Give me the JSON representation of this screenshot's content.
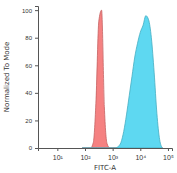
{
  "chart_data": {
    "type": "area",
    "log": "x",
    "x_label": "FITC-A",
    "y_label": "Normalized To Mode",
    "x": [
      79,
      100,
      126,
      158,
      200,
      251,
      316,
      398,
      501,
      631,
      794,
      1000,
      1259,
      1585,
      1995,
      2512,
      3162,
      3981,
      5012,
      6310,
      7943,
      10000,
      12589,
      15849,
      19953,
      25119,
      31623,
      39811,
      50119,
      63096
    ],
    "series": [
      {
        "color": "#f47a7a",
        "values": [
          0,
          0,
          0,
          0,
          4,
          35,
          92,
          100,
          30,
          3,
          0,
          0,
          0,
          0,
          0,
          0,
          0,
          0,
          0,
          0,
          0,
          0,
          0,
          0,
          0,
          0,
          0,
          0,
          0,
          0
        ]
      },
      {
        "color": "#55d6f0",
        "values": [
          0,
          0,
          0,
          0,
          0,
          0,
          0,
          0,
          0,
          0,
          0,
          0,
          0,
          1,
          4,
          12,
          24,
          38,
          52,
          66,
          76,
          84,
          89,
          96,
          93,
          80,
          55,
          25,
          6,
          0
        ]
      }
    ],
    "xlim": [
      2,
      140000
    ],
    "xticks": [
      {
        "value": 10,
        "label": "10¹"
      },
      {
        "value": 100,
        "label": "10²"
      },
      {
        "value": 1000,
        "label": "10³"
      },
      {
        "value": 10000,
        "label": "10⁴"
      },
      {
        "value": 100000,
        "label": "10⁵"
      }
    ],
    "ylim": [
      0,
      103
    ],
    "yticks": [
      0,
      20,
      40,
      60,
      80,
      100
    ]
  }
}
